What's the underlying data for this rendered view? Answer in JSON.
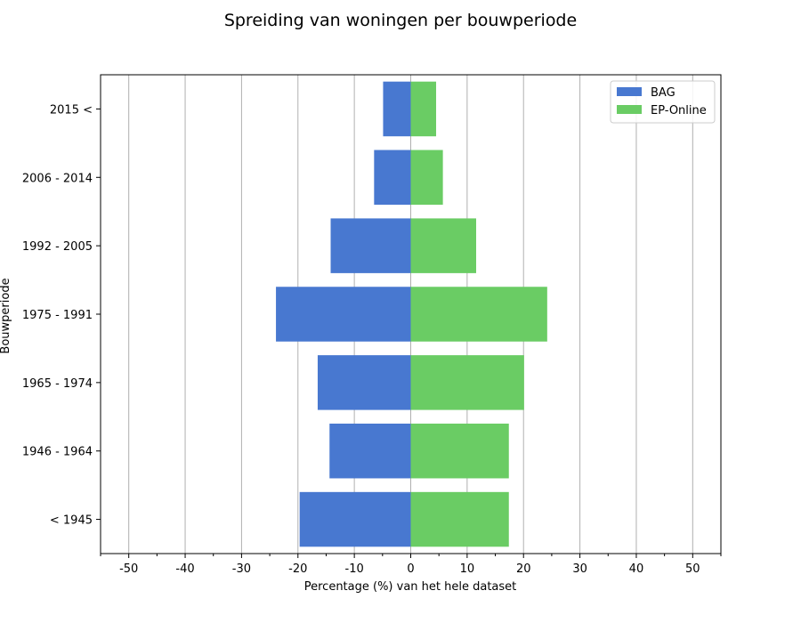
{
  "chart_data": {
    "type": "bar",
    "orientation": "horizontal",
    "title": "Spreiding van woningen per bouwperiode",
    "xlabel": "Percentage (%) van het hele dataset",
    "ylabel": "Bouwperiode",
    "xlim": [
      -55,
      55
    ],
    "xticks": [
      -50,
      -40,
      -30,
      -20,
      -10,
      0,
      10,
      20,
      30,
      40,
      50
    ],
    "grid": "vertical",
    "legend_position": "top-right",
    "categories": [
      "< 1945",
      "1946 - 1964",
      "1965 - 1974",
      "1975 - 1991",
      "1992 - 2005",
      "2006 - 2014",
      "2015 <"
    ],
    "series": [
      {
        "name": "BAG",
        "color": "#4878d0",
        "values": [
          -19.7,
          -14.4,
          -16.5,
          -23.9,
          -14.2,
          -6.5,
          -4.9
        ]
      },
      {
        "name": "EP-Online",
        "color": "#6acc64",
        "values": [
          17.4,
          17.4,
          20.1,
          24.2,
          11.6,
          5.7,
          4.5
        ]
      }
    ]
  }
}
